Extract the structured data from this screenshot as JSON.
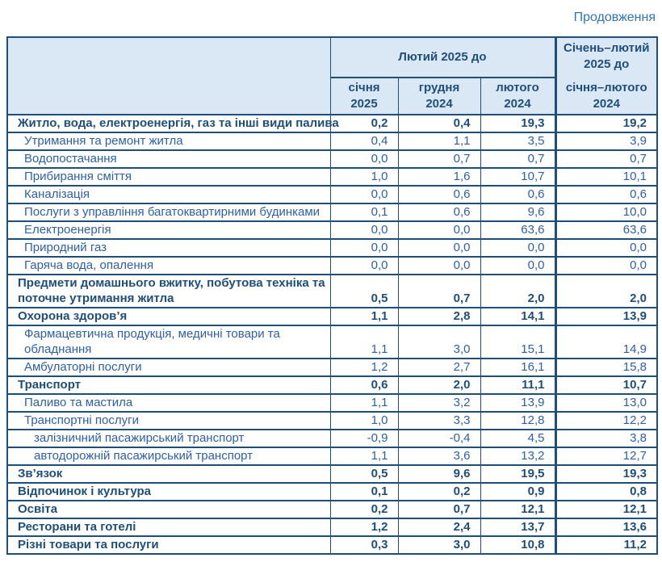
{
  "page": {
    "continuation_label": "Продовження"
  },
  "colors": {
    "border": "#1F4E79",
    "header_bg": "#DAE8F6",
    "text_bold": "#1F4E79",
    "text_regular": "#2E5FA3",
    "continuation": "#2E74B5"
  },
  "table": {
    "header": {
      "group_label": "Лютий 2025 до",
      "columns": [
        {
          "line1": "січня",
          "line2": "2025"
        },
        {
          "line1": "грудня",
          "line2": "2024"
        },
        {
          "line1": "лютого",
          "line2": "2024"
        }
      ],
      "merged_column": {
        "top_line1": "Січень–лютий",
        "top_line2": "2025 до",
        "bottom_line1": "січня–лютого",
        "bottom_line2": "2024"
      }
    },
    "rows": [
      {
        "label": "Житло, вода, електроенергія, газ та інші види палива",
        "level": 1,
        "bold": true,
        "two_line": false,
        "values": [
          "0,2",
          "0,4",
          "19,3",
          "19,2"
        ]
      },
      {
        "label": "Утримання та ремонт житла",
        "level": 2,
        "bold": false,
        "two_line": false,
        "values": [
          "0,4",
          "1,1",
          "3,5",
          "3,9"
        ]
      },
      {
        "label": "Водопостачання",
        "level": 2,
        "bold": false,
        "two_line": false,
        "values": [
          "0,0",
          "0,7",
          "0,7",
          "0,7"
        ]
      },
      {
        "label": "Прибирання сміття",
        "level": 2,
        "bold": false,
        "two_line": false,
        "values": [
          "1,0",
          "1,6",
          "10,7",
          "10,1"
        ]
      },
      {
        "label": "Каналізація",
        "level": 2,
        "bold": false,
        "two_line": false,
        "values": [
          "0,0",
          "0,6",
          "0,6",
          "0,6"
        ]
      },
      {
        "label": "Послуги з управління багатоквартирними будинками",
        "level": 2,
        "bold": false,
        "two_line": false,
        "values": [
          "0,1",
          "0,6",
          "9,6",
          "10,0"
        ]
      },
      {
        "label": "Електроенергія",
        "level": 2,
        "bold": false,
        "two_line": false,
        "values": [
          "0,0",
          "0,0",
          "63,6",
          "63,6"
        ]
      },
      {
        "label": "Природний газ",
        "level": 2,
        "bold": false,
        "two_line": false,
        "values": [
          "0,0",
          "0,0",
          "0,0",
          "0,0"
        ]
      },
      {
        "label": "Гаряча вода, опалення",
        "level": 2,
        "bold": false,
        "two_line": false,
        "values": [
          "0,0",
          "0,0",
          "0,0",
          "0,0"
        ]
      },
      {
        "label": "Предмети домашнього вжитку, побутова техніка та\nпоточне утримання житла",
        "level": 1,
        "bold": true,
        "two_line": true,
        "values": [
          "0,5",
          "0,7",
          "2,0",
          "2,0"
        ]
      },
      {
        "label": "Охорона здоров’я",
        "level": 1,
        "bold": true,
        "two_line": false,
        "values": [
          "1,1",
          "2,8",
          "14,1",
          "13,9"
        ]
      },
      {
        "label": "Фармацевтична продукція, медичні товари та\nобладнання",
        "level": 2,
        "bold": false,
        "two_line": true,
        "values": [
          "1,1",
          "3,0",
          "15,1",
          "14,9"
        ]
      },
      {
        "label": "Амбулаторні послуги",
        "level": 2,
        "bold": false,
        "two_line": false,
        "values": [
          "1,2",
          "2,7",
          "16,1",
          "15,8"
        ]
      },
      {
        "label": "Транспорт",
        "level": 1,
        "bold": true,
        "two_line": false,
        "values": [
          "0,6",
          "2,0",
          "11,1",
          "10,7"
        ]
      },
      {
        "label": "Паливо та мастила",
        "level": 2,
        "bold": false,
        "two_line": false,
        "values": [
          "1,1",
          "3,2",
          "13,9",
          "13,0"
        ]
      },
      {
        "label": "Транспортні послуги",
        "level": 2,
        "bold": false,
        "two_line": false,
        "values": [
          "1,0",
          "3,3",
          "12,8",
          "12,2"
        ]
      },
      {
        "label": "залізничний пасажирський транспорт",
        "level": 3,
        "bold": false,
        "two_line": false,
        "values": [
          "-0,9",
          "-0,4",
          "4,5",
          "3,8"
        ]
      },
      {
        "label": "автодорожній пасажирський транспорт",
        "level": 3,
        "bold": false,
        "two_line": false,
        "values": [
          "1,1",
          "3,6",
          "13,2",
          "12,7"
        ]
      },
      {
        "label": "Зв’язок",
        "level": 1,
        "bold": true,
        "two_line": false,
        "values": [
          "0,5",
          "9,6",
          "19,5",
          "19,3"
        ]
      },
      {
        "label": "Відпочинок і культура",
        "level": 1,
        "bold": true,
        "two_line": false,
        "values": [
          "0,1",
          "0,2",
          "0,9",
          "0,8"
        ]
      },
      {
        "label": "Освіта",
        "level": 1,
        "bold": true,
        "two_line": false,
        "values": [
          "0,2",
          "0,7",
          "12,1",
          "12,1"
        ]
      },
      {
        "label": "Ресторани та готелі",
        "level": 1,
        "bold": true,
        "two_line": false,
        "values": [
          "1,2",
          "2,4",
          "13,7",
          "13,6"
        ]
      },
      {
        "label": "Різні товари та послуги",
        "level": 1,
        "bold": true,
        "two_line": false,
        "values": [
          "0,3",
          "3,0",
          "10,8",
          "11,2"
        ]
      }
    ]
  }
}
